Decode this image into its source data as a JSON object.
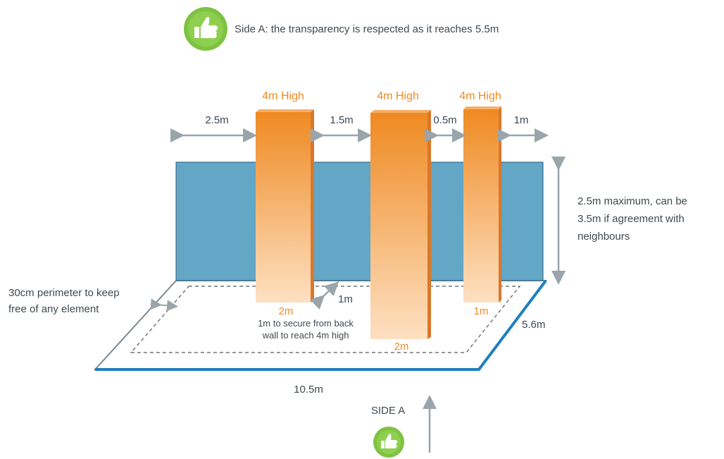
{
  "header": {
    "text": "Side A: the transparency is respected as it reaches 5.5m",
    "icon": "thumbs-up-icon"
  },
  "colors": {
    "wall": "#63a6c6",
    "pillar_top": "#ef8a22",
    "pillar_bottom": "#fde0c2",
    "floor_edge": "#1e7fbf",
    "arrow": "#9aa4ab",
    "badge": "#7ec242",
    "text": "#3e4a52",
    "accent_text": "#ef8a22"
  },
  "pillars": [
    {
      "height_label": "4m High",
      "base_label": "2m"
    },
    {
      "height_label": "4m High",
      "base_label": "2m"
    },
    {
      "height_label": "4m High",
      "base_label": "1m"
    }
  ],
  "gaps": [
    "2.5m",
    "1.5m",
    "0.5m",
    "1m"
  ],
  "wall_height_note": [
    "2.5m maximum, can be",
    "3.5m if agreement with",
    "neighbours"
  ],
  "perimeter_note": [
    "30cm perimeter to keep",
    "free of any element"
  ],
  "setback": {
    "distance": "1m",
    "note": [
      "1m to secure from back",
      "wall to reach 4m high"
    ]
  },
  "floor": {
    "length": "10.5m",
    "depth": "5.6m"
  },
  "side_label": "SIDE A"
}
